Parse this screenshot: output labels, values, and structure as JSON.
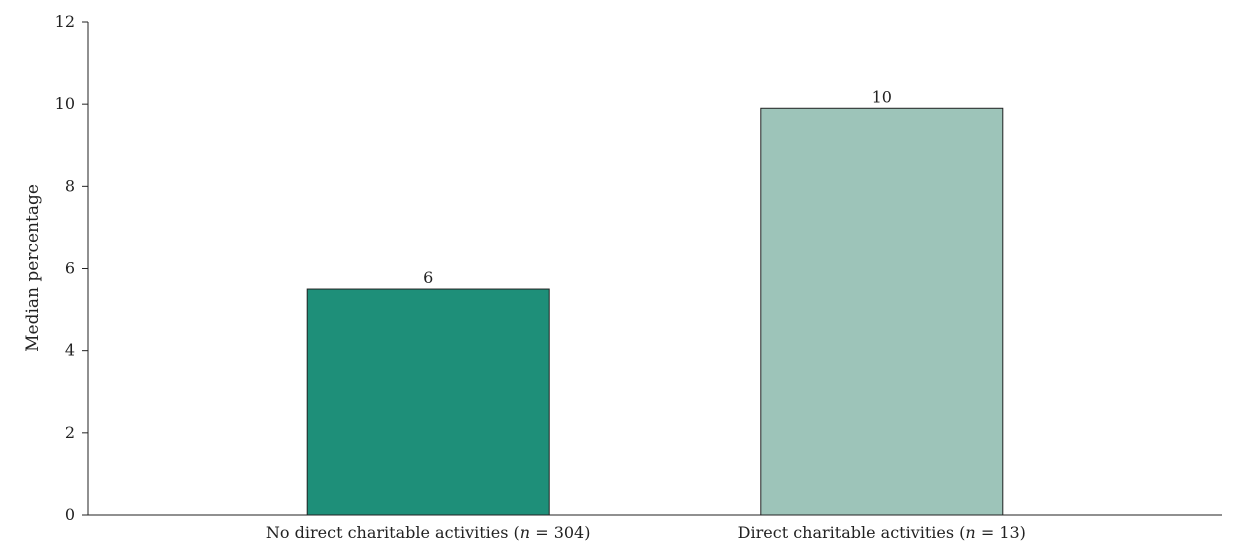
{
  "chart_data": {
    "type": "bar",
    "title": "",
    "xlabel": "",
    "ylabel": "Median percentage",
    "ylim": [
      0,
      12
    ],
    "yticks": [
      0,
      2,
      4,
      6,
      8,
      10,
      12
    ],
    "grid": false,
    "categories": [
      {
        "pre": "No direct charitable activities (",
        "n": "n",
        "post": " = 304)"
      },
      {
        "pre": "Direct charitable activities (",
        "n": "n",
        "post": " = 13)"
      }
    ],
    "values": [
      5.5,
      9.9
    ],
    "data_labels": [
      "6",
      "10"
    ],
    "colors": [
      "#1e8f79",
      "#9dc4b9"
    ]
  }
}
